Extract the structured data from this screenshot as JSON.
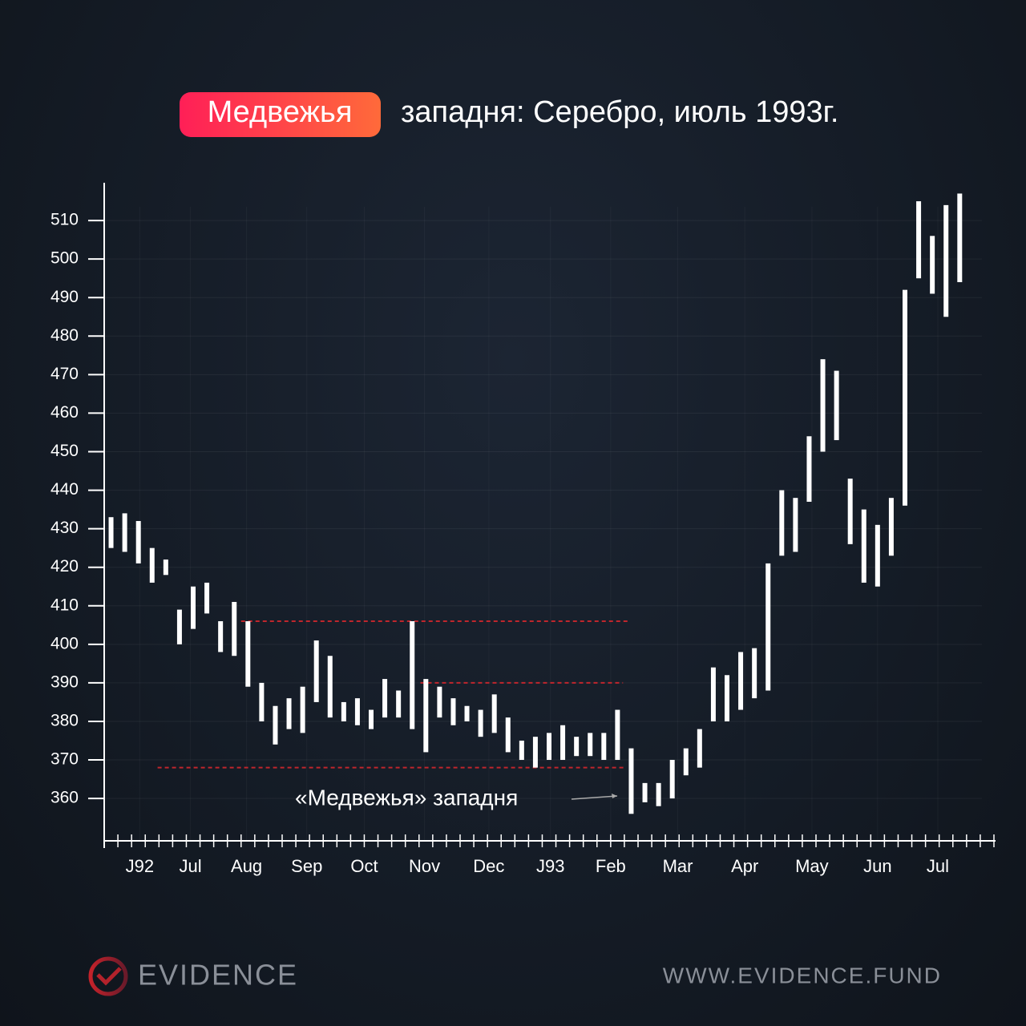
{
  "chart_data": {
    "type": "range-bar",
    "title_highlight": "Медвежья",
    "title": "западня: Серебро, июль 1993г.",
    "annotation": "«Медвежья» западня",
    "color": "#ffffff",
    "ref_color": "#c0262c",
    "lows": [
      425,
      424,
      421,
      416,
      418,
      400,
      404,
      408,
      398,
      397,
      389,
      380,
      374,
      378,
      377,
      385,
      381,
      380,
      379,
      378,
      381,
      381,
      378,
      372,
      381,
      379,
      380,
      376,
      377,
      372,
      370,
      368,
      370,
      370,
      371,
      371,
      370,
      370,
      356,
      359,
      358,
      360,
      366,
      368,
      380,
      380,
      383,
      386,
      388,
      423,
      424,
      437,
      450,
      453,
      426,
      416,
      415,
      423,
      436,
      495,
      491,
      485,
      494
    ],
    "highs": [
      433,
      434,
      432,
      425,
      422,
      409,
      415,
      416,
      406,
      411,
      406,
      390,
      384,
      386,
      389,
      401,
      397,
      385,
      386,
      383,
      391,
      388,
      406,
      391,
      389,
      386,
      384,
      383,
      387,
      381,
      375,
      376,
      377,
      379,
      376,
      377,
      377,
      383,
      373,
      364,
      364,
      370,
      373,
      378,
      394,
      392,
      398,
      399,
      421,
      440,
      438,
      454,
      474,
      471,
      443,
      435,
      431,
      438,
      492,
      515,
      506,
      514,
      517
    ],
    "reference_lines": [
      {
        "y": 406,
        "x": [
          10,
          38.3
        ]
      },
      {
        "y": 390,
        "x": [
          23.1,
          37.9
        ]
      },
      {
        "y": 368,
        "x": [
          3.9,
          38
        ]
      }
    ],
    "xlim": [
      0,
      65
    ],
    "xticks": [
      {
        "value": 2.6,
        "label": "J92"
      },
      {
        "value": 6.3,
        "label": "Jul"
      },
      {
        "value": 10.4,
        "label": "Aug"
      },
      {
        "value": 14.8,
        "label": "Sep"
      },
      {
        "value": 19.0,
        "label": "Oct"
      },
      {
        "value": 23.4,
        "label": "Nov"
      },
      {
        "value": 28.1,
        "label": "Dec"
      },
      {
        "value": 32.6,
        "label": "J93"
      },
      {
        "value": 37.0,
        "label": "Feb"
      },
      {
        "value": 41.9,
        "label": "Mar"
      },
      {
        "value": 46.8,
        "label": "Apr"
      },
      {
        "value": 51.7,
        "label": "May"
      },
      {
        "value": 56.5,
        "label": "Jun"
      },
      {
        "value": 60.9,
        "label": "Jul"
      }
    ],
    "ylim": [
      349.2,
      519.8
    ],
    "yticks": [
      360,
      370,
      380,
      390,
      400,
      410,
      420,
      430,
      440,
      450,
      460,
      470,
      480,
      490,
      500,
      510
    ],
    "grid": true
  },
  "footer": {
    "brand": "EVIDENCE",
    "url": "WWW.EVIDENCE.FUND"
  }
}
